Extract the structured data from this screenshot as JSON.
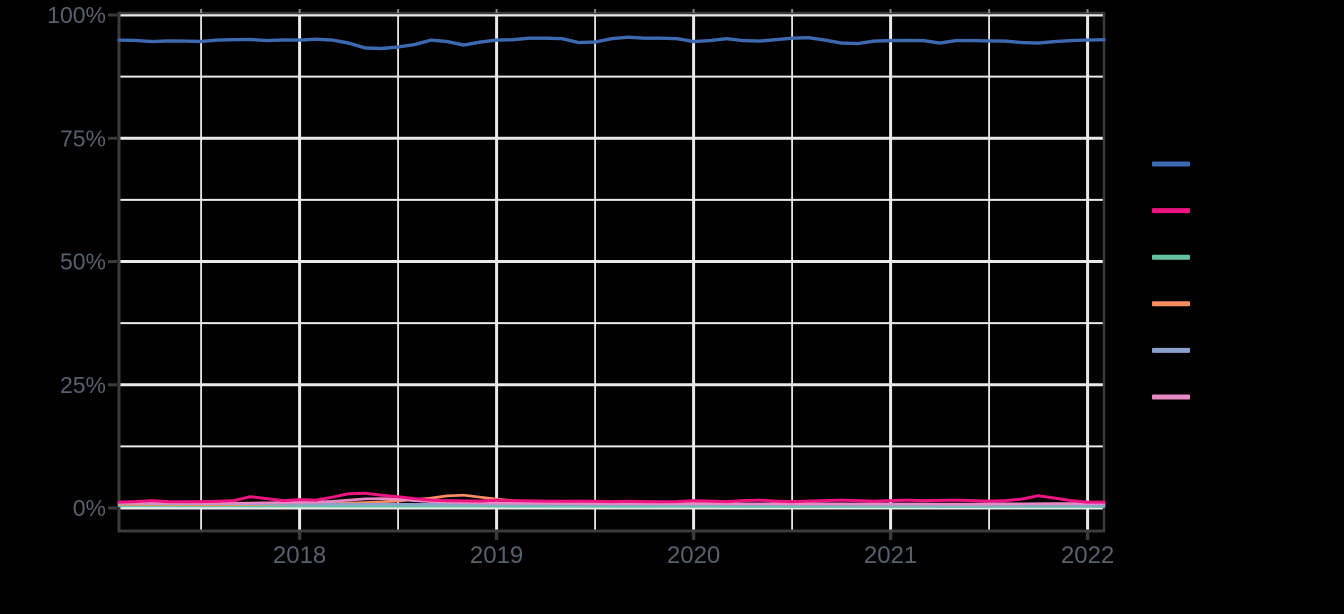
{
  "style": {
    "background": "#000000",
    "grid_color": "#e9e9e9",
    "axis_line_color": "#3b3b3b",
    "top_tick_color": "#8a8a8a",
    "axis_label_color": "#57616d"
  },
  "chart_data": {
    "type": "line",
    "title": "",
    "grid": true,
    "legend_position": "right",
    "x_axis": {
      "start_decimal_year": 2017.0833,
      "end_decimal_year": 2022.0833,
      "points_interval": "monthly",
      "tick_values": [
        2018,
        2019,
        2020,
        2021,
        2022
      ],
      "tick_labels": [
        "2018",
        "2019",
        "2020",
        "2021",
        "2022"
      ],
      "minor_grid_interval_years": 0.5
    },
    "y_axis": {
      "unit": "%",
      "lim": [
        0,
        100
      ],
      "tick_values": [
        100,
        75,
        50,
        25,
        0
      ],
      "tick_labels": [
        "100%",
        "75%",
        "50%",
        "25%",
        "0%"
      ],
      "minor_grid_interval": 12.5
    },
    "series": [
      {
        "id": "blue",
        "label": "",
        "color": "#3c69b0",
        "values": [
          94.9,
          94.85,
          94.6,
          94.75,
          94.7,
          94.65,
          94.9,
          95.0,
          95.05,
          94.8,
          94.95,
          94.9,
          95.1,
          94.9,
          94.3,
          93.3,
          93.2,
          93.5,
          94.0,
          94.9,
          94.6,
          93.9,
          94.5,
          94.9,
          95.0,
          95.3,
          95.3,
          95.2,
          94.4,
          94.5,
          95.2,
          95.5,
          95.3,
          95.3,
          95.2,
          94.6,
          94.8,
          95.2,
          94.8,
          94.7,
          95.0,
          95.3,
          95.4,
          94.9,
          94.3,
          94.2,
          94.7,
          94.8,
          94.85,
          94.8,
          94.3,
          94.8,
          94.8,
          94.75,
          94.7,
          94.4,
          94.3,
          94.6,
          94.8,
          94.9,
          95.0
        ]
      },
      {
        "id": "magenta",
        "label": "",
        "color": "#ec1480",
        "values": [
          1.2,
          1.3,
          1.5,
          1.3,
          1.25,
          1.3,
          1.35,
          1.5,
          2.3,
          1.9,
          1.5,
          1.7,
          1.6,
          2.2,
          2.9,
          3.0,
          2.6,
          2.3,
          1.9,
          1.6,
          1.5,
          1.45,
          1.4,
          1.6,
          1.5,
          1.45,
          1.4,
          1.35,
          1.4,
          1.35,
          1.3,
          1.35,
          1.3,
          1.25,
          1.3,
          1.5,
          1.4,
          1.3,
          1.5,
          1.6,
          1.4,
          1.3,
          1.4,
          1.5,
          1.6,
          1.5,
          1.4,
          1.5,
          1.6,
          1.5,
          1.55,
          1.6,
          1.5,
          1.4,
          1.5,
          1.8,
          2.5,
          2.0,
          1.5,
          1.2,
          1.2
        ]
      },
      {
        "id": "teal",
        "label": "",
        "color": "#66c2a5",
        "values": [
          0.45,
          0.45,
          0.44,
          0.44,
          0.43,
          0.43,
          0.42,
          0.42,
          0.41,
          0.41,
          0.4,
          0.4,
          0.4,
          0.39,
          0.39,
          0.38,
          0.38,
          0.38,
          0.37,
          0.37,
          0.37,
          0.36,
          0.36,
          0.36,
          0.35,
          0.35,
          0.35,
          0.34,
          0.34,
          0.34,
          0.33,
          0.33,
          0.33,
          0.33,
          0.32,
          0.32,
          0.32,
          0.32,
          0.31,
          0.31,
          0.31,
          0.31,
          0.3,
          0.3,
          0.3,
          0.3,
          0.3,
          0.3,
          0.3,
          0.3,
          0.3,
          0.3,
          0.3,
          0.3,
          0.3,
          0.3,
          0.3,
          0.3,
          0.3,
          0.3,
          0.3
        ]
      },
      {
        "id": "orange",
        "label": "",
        "color": "#fc8d62",
        "values": [
          0.75,
          0.74,
          0.73,
          0.73,
          0.72,
          0.72,
          0.72,
          0.73,
          0.74,
          0.76,
          0.78,
          0.8,
          0.85,
          0.9,
          1.0,
          1.1,
          1.25,
          1.45,
          1.7,
          2.0,
          2.45,
          2.6,
          2.2,
          1.8,
          1.5,
          1.35,
          1.25,
          1.15,
          1.1,
          1.05,
          1.0,
          1.0,
          0.95,
          0.95,
          0.9,
          0.9,
          0.9,
          0.85,
          0.85,
          0.85,
          0.8,
          0.8,
          0.8,
          0.8,
          0.75,
          0.75,
          0.75,
          0.75,
          0.7,
          0.7,
          0.7,
          0.7,
          0.7,
          0.68,
          0.68,
          0.65,
          0.65,
          0.65,
          0.65,
          0.62,
          0.62
        ]
      },
      {
        "id": "periwinkle",
        "label": "",
        "color": "#8da0cb",
        "values": [
          0.95,
          0.93,
          0.92,
          0.9,
          0.9,
          0.88,
          0.88,
          0.87,
          0.85,
          0.85,
          0.83,
          0.82,
          0.82,
          0.8,
          0.8,
          0.78,
          0.78,
          0.77,
          0.75,
          0.75,
          0.74,
          0.73,
          0.72,
          0.72,
          0.72,
          0.7,
          0.7,
          0.7,
          0.68,
          0.68,
          0.68,
          0.66,
          0.66,
          0.65,
          0.65,
          0.65,
          0.65,
          0.64,
          0.64,
          0.63,
          0.63,
          0.62,
          0.62,
          0.62,
          0.61,
          0.61,
          0.6,
          0.6,
          0.6,
          0.6,
          0.59,
          0.59,
          0.58,
          0.58,
          0.58,
          0.57,
          0.57,
          0.56,
          0.56,
          0.55,
          0.55
        ]
      },
      {
        "id": "orchid",
        "label": "",
        "color": "#e78ac3",
        "values": [
          1.05,
          1.0,
          1.0,
          0.98,
          0.97,
          0.96,
          0.96,
          0.98,
          1.0,
          1.05,
          1.1,
          1.15,
          1.2,
          1.35,
          1.6,
          1.85,
          1.9,
          1.75,
          1.5,
          1.3,
          1.2,
          1.1,
          1.05,
          1.0,
          0.98,
          0.96,
          0.95,
          0.94,
          0.93,
          0.92,
          0.91,
          0.9,
          0.9,
          0.89,
          0.88,
          0.88,
          0.87,
          0.86,
          0.86,
          0.85,
          0.85,
          0.84,
          0.84,
          0.83,
          0.83,
          0.82,
          0.82,
          0.82,
          0.81,
          0.81,
          0.8,
          0.8,
          0.8,
          0.82,
          0.84,
          0.86,
          0.88,
          0.9,
          0.9,
          0.9,
          0.9
        ]
      }
    ]
  },
  "legend": {
    "items": [
      {
        "color_name": "blue",
        "color": "#3c69b0",
        "label": ""
      },
      {
        "color_name": "magenta",
        "color": "#ec1480",
        "label": ""
      },
      {
        "color_name": "teal",
        "color": "#66c2a5",
        "label": ""
      },
      {
        "color_name": "orange",
        "color": "#fc8d62",
        "label": ""
      },
      {
        "color_name": "periwinkle",
        "color": "#8da0cb",
        "label": ""
      },
      {
        "color_name": "orchid",
        "color": "#e78ac3",
        "label": ""
      }
    ]
  }
}
